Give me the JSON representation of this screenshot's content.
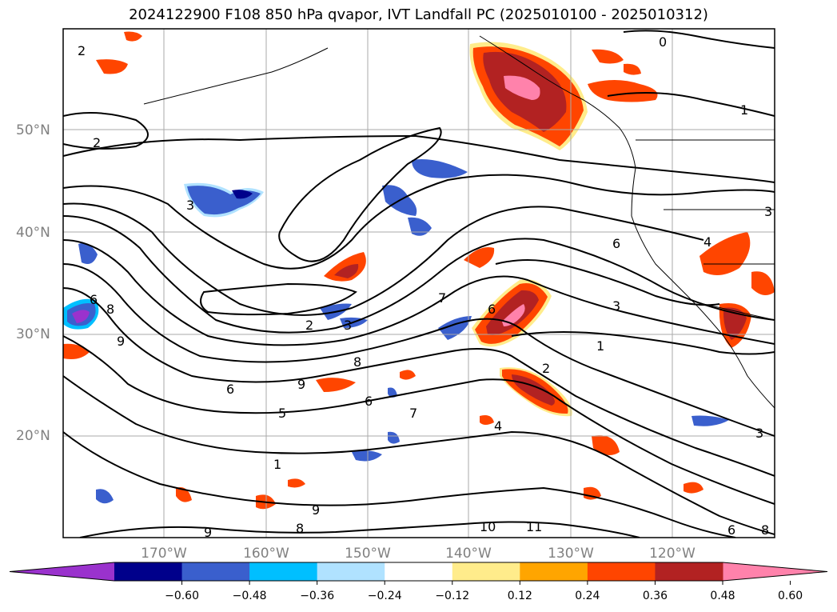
{
  "chart_data": {
    "type": "map-contour",
    "title": "2024122900 F108 850 hPa qvapor, IVT Landfall PC (2025010100 - 2025010312)",
    "lat_ticks": [
      "20°N",
      "30°N",
      "40°N",
      "50°N"
    ],
    "lon_ticks": [
      "170°W",
      "160°W",
      "150°W",
      "140°W",
      "130°W",
      "120°W"
    ],
    "colorbar": {
      "ticks": [
        "−0.60",
        "−0.48",
        "−0.36",
        "−0.24",
        "−0.12",
        "0.12",
        "0.24",
        "0.36",
        "0.48",
        "0.60"
      ],
      "colors": [
        "#9a32cd",
        "#00008b",
        "#3a5fcd",
        "#00bfff",
        "#b0e2ff",
        "#ffffff",
        "#ffec8b",
        "#ffa500",
        "#ff4500",
        "#b22222",
        "#ff82ab"
      ],
      "extend": "both"
    },
    "contour_labels": [
      "2",
      "2",
      "0",
      "1",
      "3",
      "3",
      "6",
      "6",
      "7",
      "3",
      "1",
      "2",
      "2",
      "9",
      "8",
      "6",
      "6",
      "9",
      "8",
      "7",
      "6",
      "5",
      "4",
      "3",
      "1",
      "9",
      "10",
      "11",
      "8",
      "9",
      "4",
      "3",
      "6",
      "8"
    ]
  }
}
